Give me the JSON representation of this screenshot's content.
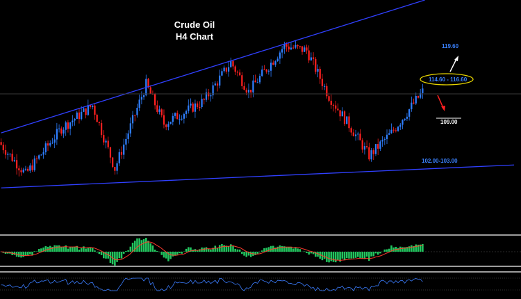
{
  "chart_title_line1": "Crude Oil",
  "chart_title_line2": "H4 Chart",
  "annotations": {
    "target_up": "119.60",
    "resistance_zone": "114.60 - 116.60",
    "target_down": "109.00",
    "support_zone": "102.00-103.00"
  },
  "colors": {
    "background": "#000000",
    "bull_candle": "#2f7fff",
    "bear_candle": "#ff2020",
    "trendline": "#3040ff",
    "zone_ellipse": "#e6d400",
    "arrow_up": "#ffffff",
    "arrow_down": "#ff2020",
    "histogram": "#22c55e",
    "signal_line": "#ff3b30",
    "oscillator_line": "#3b7dff"
  },
  "chart_data": {
    "type": "candlestick",
    "symbol": "Crude Oil",
    "timeframe": "H4",
    "price_path_keypoints": [
      {
        "bar": 0,
        "price": 106.5
      },
      {
        "bar": 12,
        "price": 103.0
      },
      {
        "bar": 28,
        "price": 108.0
      },
      {
        "bar": 42,
        "price": 110.5
      },
      {
        "bar": 52,
        "price": 103.6
      },
      {
        "bar": 66,
        "price": 112.8
      },
      {
        "bar": 74,
        "price": 108.5
      },
      {
        "bar": 92,
        "price": 111.0
      },
      {
        "bar": 104,
        "price": 115.2
      },
      {
        "bar": 112,
        "price": 112.0
      },
      {
        "bar": 128,
        "price": 117.0
      },
      {
        "bar": 138,
        "price": 116.5
      },
      {
        "bar": 148,
        "price": 111.5
      },
      {
        "bar": 158,
        "price": 108.0
      },
      {
        "bar": 166,
        "price": 105.0
      },
      {
        "bar": 176,
        "price": 107.5
      },
      {
        "bar": 190,
        "price": 112.0
      }
    ],
    "trendlines": [
      {
        "name": "upper channel",
        "from": {
          "bar": 0,
          "price": 107.5
        },
        "to": {
          "bar": 190,
          "price": 122.0
        }
      },
      {
        "name": "lower channel",
        "from": {
          "bar": 0,
          "price": 101.5
        },
        "to": {
          "bar": 230,
          "price": 104.0
        }
      }
    ],
    "price_ylim": [
      100.0,
      122.0
    ],
    "bars": 190,
    "indicators": [
      {
        "type": "histogram_with_signal",
        "range": [
          -1,
          1
        ]
      },
      {
        "type": "line_oscillator",
        "range": [
          -1,
          1
        ]
      }
    ],
    "grid": false
  }
}
